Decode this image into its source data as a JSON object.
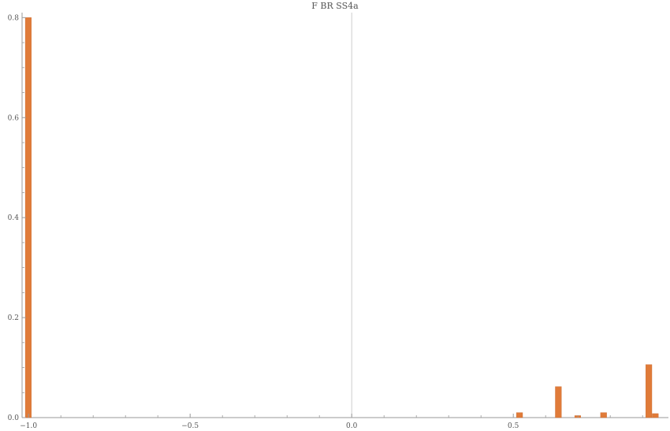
{
  "chart_data": {
    "type": "bar",
    "title": "F BR SS4a",
    "xlabel": "",
    "ylabel": "",
    "xlim": [
      -1.02,
      0.98
    ],
    "ylim": [
      0,
      0.81
    ],
    "bin_width": 0.02,
    "x_ticks": [
      {
        "value": -1.0,
        "label": "−1.0"
      },
      {
        "value": -0.5,
        "label": "−0.5"
      },
      {
        "value": 0.0,
        "label": "0.0"
      },
      {
        "value": 0.5,
        "label": "0.5"
      }
    ],
    "y_ticks": [
      {
        "value": 0.0,
        "label": "0.0"
      },
      {
        "value": 0.2,
        "label": "0.2"
      },
      {
        "value": 0.4,
        "label": "0.4"
      },
      {
        "value": 0.6,
        "label": "0.6"
      },
      {
        "value": 0.8,
        "label": "0.8"
      }
    ],
    "bars": [
      {
        "x": -1.0,
        "value": 0.8
      },
      {
        "x": 0.52,
        "value": 0.01
      },
      {
        "x": 0.64,
        "value": 0.062
      },
      {
        "x": 0.7,
        "value": 0.004
      },
      {
        "x": 0.78,
        "value": 0.01
      },
      {
        "x": 0.92,
        "value": 0.106
      },
      {
        "x": 0.94,
        "value": 0.008
      }
    ],
    "colors": {
      "bar": "#E07B39",
      "bar_edge": "#C96A2E",
      "axis": "#9a9a9a",
      "zero_line": "#cccccc"
    },
    "grid": false,
    "legend": "none"
  }
}
